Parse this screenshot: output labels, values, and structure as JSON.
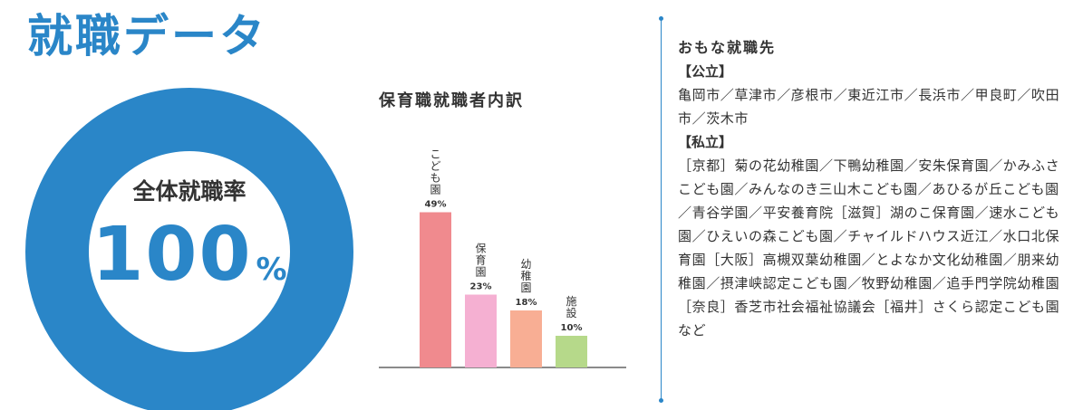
{
  "page": {
    "title": "就職データ"
  },
  "employment_rate": {
    "label": "全体就職率",
    "value": "100",
    "unit": "%",
    "percent": 100,
    "color": "#2a86c8"
  },
  "chart_data": {
    "type": "bar",
    "title": "保育職就職者内訳",
    "categories": [
      "こども園",
      "保育園",
      "幼稚園",
      "施設"
    ],
    "values": [
      49,
      23,
      18,
      10
    ],
    "value_labels": [
      "49%",
      "23%",
      "18%",
      "10%"
    ],
    "colors": [
      "#f08a8e",
      "#f5b0d2",
      "#f8ae94",
      "#b6d98a"
    ],
    "xlabel": "",
    "ylabel": "",
    "ylim": [
      0,
      60
    ],
    "grid": false
  },
  "employers": {
    "title": "おもな就職先",
    "public_head": "【公立】",
    "public_body": "亀岡市／草津市／彦根市／東近江市／長浜市／甲良町／吹田市／茨木市",
    "private_head": "【私立】",
    "private_body": "［京都］菊の花幼稚園／下鴨幼稚園／安朱保育園／かみふさこども園／みんなのき三山木こども園／あひるが丘こども園／青谷学園／平安養育院［滋賀］湖のこ保育園／速水こども園／ひえいの森こども園／チャイルドハウス近江／水口北保育園［大阪］高槻双葉幼稚園／とよなか文化幼稚園／朋来幼稚園／摂津峡認定こども園／牧野幼稚園／追手門学院幼稚園［奈良］香芝市社会福祉協議会［福井］さくら認定こども園",
    "footer": "など"
  }
}
